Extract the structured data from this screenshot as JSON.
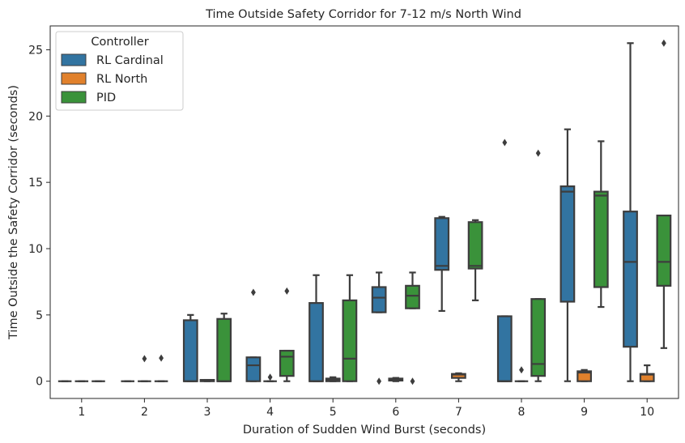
{
  "chart_data": {
    "type": "box",
    "title": "Time Outside Safety Corridor for 7-12 m/s North Wind",
    "xlabel": "Duration of Sudden Wind Burst (seconds)",
    "ylabel": "Time Outside the Safety Corridor (seconds)",
    "ylim": [
      -1.3,
      26.8
    ],
    "yticks": [
      0,
      5,
      10,
      15,
      20,
      25
    ],
    "categories": [
      "1",
      "2",
      "3",
      "4",
      "5",
      "6",
      "7",
      "8",
      "9",
      "10"
    ],
    "legend": {
      "title": "Controller",
      "position": "top-left"
    },
    "series": [
      {
        "name": "RL Cardinal",
        "color": "#3274a1",
        "boxes": [
          {
            "min": 0,
            "q1": 0,
            "median": 0,
            "q3": 0,
            "max": 0,
            "outliers": []
          },
          {
            "min": 0,
            "q1": 0,
            "median": 0,
            "q3": 0,
            "max": 0,
            "outliers": []
          },
          {
            "min": 0,
            "q1": 0,
            "median": 0,
            "q3": 4.6,
            "max": 5.0,
            "outliers": []
          },
          {
            "min": 0,
            "q1": 0,
            "median": 1.2,
            "q3": 1.8,
            "max": 1.8,
            "outliers": [
              6.7
            ]
          },
          {
            "min": 0,
            "q1": 0,
            "median": 0,
            "q3": 5.9,
            "max": 8.0,
            "outliers": []
          },
          {
            "min": 5.2,
            "q1": 5.2,
            "median": 6.3,
            "q3": 7.1,
            "max": 8.2,
            "outliers": [
              0
            ]
          },
          {
            "min": 5.3,
            "q1": 8.4,
            "median": 8.7,
            "q3": 12.3,
            "max": 12.4,
            "outliers": []
          },
          {
            "min": 0,
            "q1": 0,
            "median": 0,
            "q3": 4.9,
            "max": 4.9,
            "outliers": [
              18.0
            ]
          },
          {
            "min": 0,
            "q1": 6.0,
            "median": 14.3,
            "q3": 14.7,
            "max": 19.0,
            "outliers": []
          },
          {
            "min": 0,
            "q1": 2.6,
            "median": 9.0,
            "q3": 12.8,
            "max": 25.5,
            "outliers": []
          }
        ]
      },
      {
        "name": "RL North",
        "color": "#e1812c",
        "boxes": [
          {
            "min": 0,
            "q1": 0,
            "median": 0,
            "q3": 0,
            "max": 0,
            "outliers": []
          },
          {
            "min": 0,
            "q1": 0,
            "median": 0,
            "q3": 0,
            "max": 0,
            "outliers": [
              1.7
            ]
          },
          {
            "min": 0,
            "q1": 0,
            "median": 0.1,
            "q3": 0.1,
            "max": 0.1,
            "outliers": []
          },
          {
            "min": 0,
            "q1": 0,
            "median": 0,
            "q3": 0,
            "max": 0,
            "outliers": [
              0.3
            ]
          },
          {
            "min": 0,
            "q1": 0,
            "median": 0.1,
            "q3": 0.2,
            "max": 0.3,
            "outliers": []
          },
          {
            "min": 0,
            "q1": 0.05,
            "median": 0.15,
            "q3": 0.2,
            "max": 0.25,
            "outliers": []
          },
          {
            "min": 0,
            "q1": 0.25,
            "median": 0.5,
            "q3": 0.55,
            "max": 0.6,
            "outliers": []
          },
          {
            "min": 0,
            "q1": 0,
            "median": 0,
            "q3": 0,
            "max": 0,
            "outliers": [
              0.85
            ]
          },
          {
            "min": 0,
            "q1": 0,
            "median": 0.65,
            "q3": 0.75,
            "max": 0.85,
            "outliers": []
          },
          {
            "min": 0,
            "q1": 0,
            "median": 0.5,
            "q3": 0.55,
            "max": 1.2,
            "outliers": []
          }
        ]
      },
      {
        "name": "PID",
        "color": "#3a923a",
        "boxes": [
          {
            "min": 0,
            "q1": 0,
            "median": 0,
            "q3": 0,
            "max": 0,
            "outliers": []
          },
          {
            "min": 0,
            "q1": 0,
            "median": 0,
            "q3": 0,
            "max": 0,
            "outliers": [
              1.75
            ]
          },
          {
            "min": 0,
            "q1": 0,
            "median": 0,
            "q3": 4.7,
            "max": 5.1,
            "outliers": []
          },
          {
            "min": 0,
            "q1": 0.4,
            "median": 1.85,
            "q3": 2.3,
            "max": 2.3,
            "outliers": [
              6.8
            ]
          },
          {
            "min": 0,
            "q1": 0,
            "median": 1.7,
            "q3": 6.1,
            "max": 8.0,
            "outliers": []
          },
          {
            "min": 5.5,
            "q1": 5.5,
            "median": 6.45,
            "q3": 7.2,
            "max": 8.2,
            "outliers": [
              0
            ]
          },
          {
            "min": 6.1,
            "q1": 8.5,
            "median": 8.7,
            "q3": 12.0,
            "max": 12.15,
            "outliers": []
          },
          {
            "min": 0,
            "q1": 0.4,
            "median": 1.3,
            "q3": 6.2,
            "max": 6.2,
            "outliers": [
              17.2
            ]
          },
          {
            "min": 5.6,
            "q1": 7.1,
            "median": 14.0,
            "q3": 14.3,
            "max": 18.1,
            "outliers": []
          },
          {
            "min": 2.5,
            "q1": 7.2,
            "median": 9.0,
            "q3": 12.5,
            "max": 12.5,
            "outliers": [
              25.5
            ]
          }
        ]
      }
    ]
  }
}
